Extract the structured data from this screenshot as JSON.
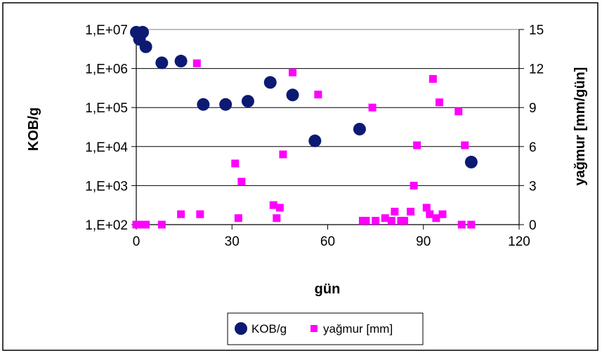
{
  "chart_data": {
    "type": "scatter",
    "title": "",
    "xlabel": "gün",
    "ylabel": "KOB/g",
    "y2label": "yağmur [mm/gün]",
    "xlim": [
      0,
      120
    ],
    "xticks": [
      "0",
      "30",
      "60",
      "90",
      "120"
    ],
    "ylim": [
      100,
      10000000
    ],
    "yscale": "log",
    "yticks": [
      "1,E+02",
      "1,E+03",
      "1,E+04",
      "1,E+05",
      "1,E+06",
      "1,E+07"
    ],
    "y2lim": [
      0,
      15
    ],
    "y2ticks": [
      "0",
      "3",
      "6",
      "9",
      "12",
      "15"
    ],
    "grid": "horizontal",
    "legend": "bottom",
    "series": [
      {
        "name": "KOB/g",
        "axis": "left",
        "marker": "circle",
        "color": "#0d1a73",
        "points": [
          [
            0,
            8500000
          ],
          [
            1,
            5600000
          ],
          [
            2,
            8500000
          ],
          [
            3,
            3600000
          ],
          [
            8,
            1400000
          ],
          [
            14,
            1550000
          ],
          [
            21,
            120000
          ],
          [
            28,
            120000
          ],
          [
            35,
            145000
          ],
          [
            42,
            440000
          ],
          [
            49,
            210000
          ],
          [
            56,
            14000
          ],
          [
            70,
            28000
          ],
          [
            105,
            4000
          ]
        ]
      },
      {
        "name": "yağmur [mm]",
        "axis": "right",
        "marker": "square",
        "color": "#ff00ff",
        "points": [
          [
            0,
            0
          ],
          [
            1,
            0
          ],
          [
            2,
            0
          ],
          [
            3,
            0
          ],
          [
            8,
            0
          ],
          [
            14,
            0.8
          ],
          [
            20,
            0.8
          ],
          [
            19,
            12.4
          ],
          [
            31,
            4.7
          ],
          [
            32,
            0.5
          ],
          [
            33,
            3.3
          ],
          [
            43,
            1.5
          ],
          [
            44,
            0.5
          ],
          [
            45,
            1.3
          ],
          [
            46,
            5.4
          ],
          [
            49,
            11.7
          ],
          [
            57,
            10.0
          ],
          [
            71,
            0.3
          ],
          [
            72,
            0.3
          ],
          [
            74,
            9.0
          ],
          [
            75,
            0.3
          ],
          [
            78,
            0.5
          ],
          [
            80,
            0.3
          ],
          [
            81,
            1.0
          ],
          [
            83,
            0.3
          ],
          [
            84,
            0.3
          ],
          [
            86,
            1.0
          ],
          [
            87,
            3.0
          ],
          [
            88,
            6.1
          ],
          [
            91,
            1.3
          ],
          [
            92,
            0.8
          ],
          [
            93,
            11.2
          ],
          [
            94,
            0.5
          ],
          [
            95,
            9.4
          ],
          [
            96,
            0.8
          ],
          [
            101,
            8.7
          ],
          [
            102,
            0
          ],
          [
            103,
            6.1
          ],
          [
            105,
            0
          ]
        ]
      }
    ],
    "colors": {
      "gridline": "#000000",
      "plot_bg": "#ffffff",
      "frame": "#000000"
    }
  }
}
